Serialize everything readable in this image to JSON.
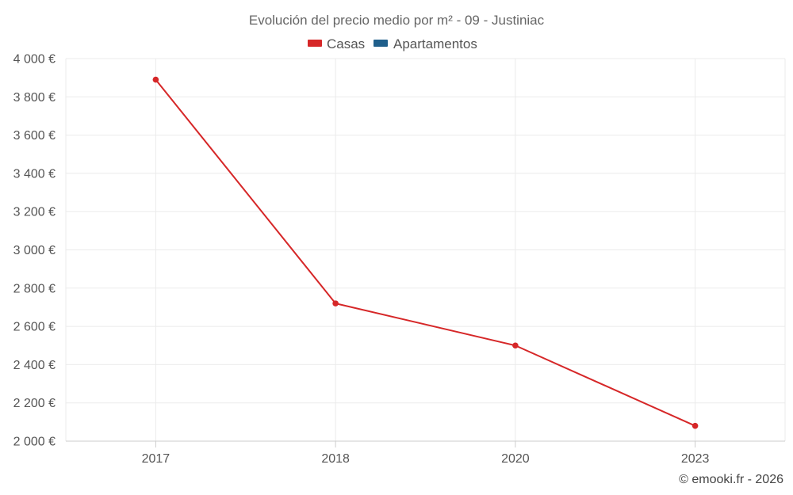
{
  "chart_data": {
    "type": "line",
    "title": "Evolución del precio medio por m² - 09 - Justiniac",
    "categories": [
      "2017",
      "2018",
      "2020",
      "2023"
    ],
    "series": [
      {
        "name": "Casas",
        "color": "#d62728",
        "values": [
          3890,
          2720,
          2500,
          2080
        ]
      },
      {
        "name": "Apartamentos",
        "color": "#1f5f8b",
        "values": [
          null,
          null,
          null,
          null
        ]
      }
    ],
    "ylim": [
      2000,
      4000
    ],
    "yticks": [
      2000,
      2200,
      2400,
      2600,
      2800,
      3000,
      3200,
      3400,
      3600,
      3800,
      4000
    ],
    "ytick_labels": [
      "2 000 €",
      "2 200 €",
      "2 400 €",
      "2 600 €",
      "2 800 €",
      "3 000 €",
      "3 200 €",
      "3 400 €",
      "3 600 €",
      "3 800 €",
      "4 000 €"
    ],
    "xlabel": "",
    "ylabel": "",
    "grid": true,
    "legend": "top-center"
  },
  "credit": "© emooki.fr - 2026"
}
